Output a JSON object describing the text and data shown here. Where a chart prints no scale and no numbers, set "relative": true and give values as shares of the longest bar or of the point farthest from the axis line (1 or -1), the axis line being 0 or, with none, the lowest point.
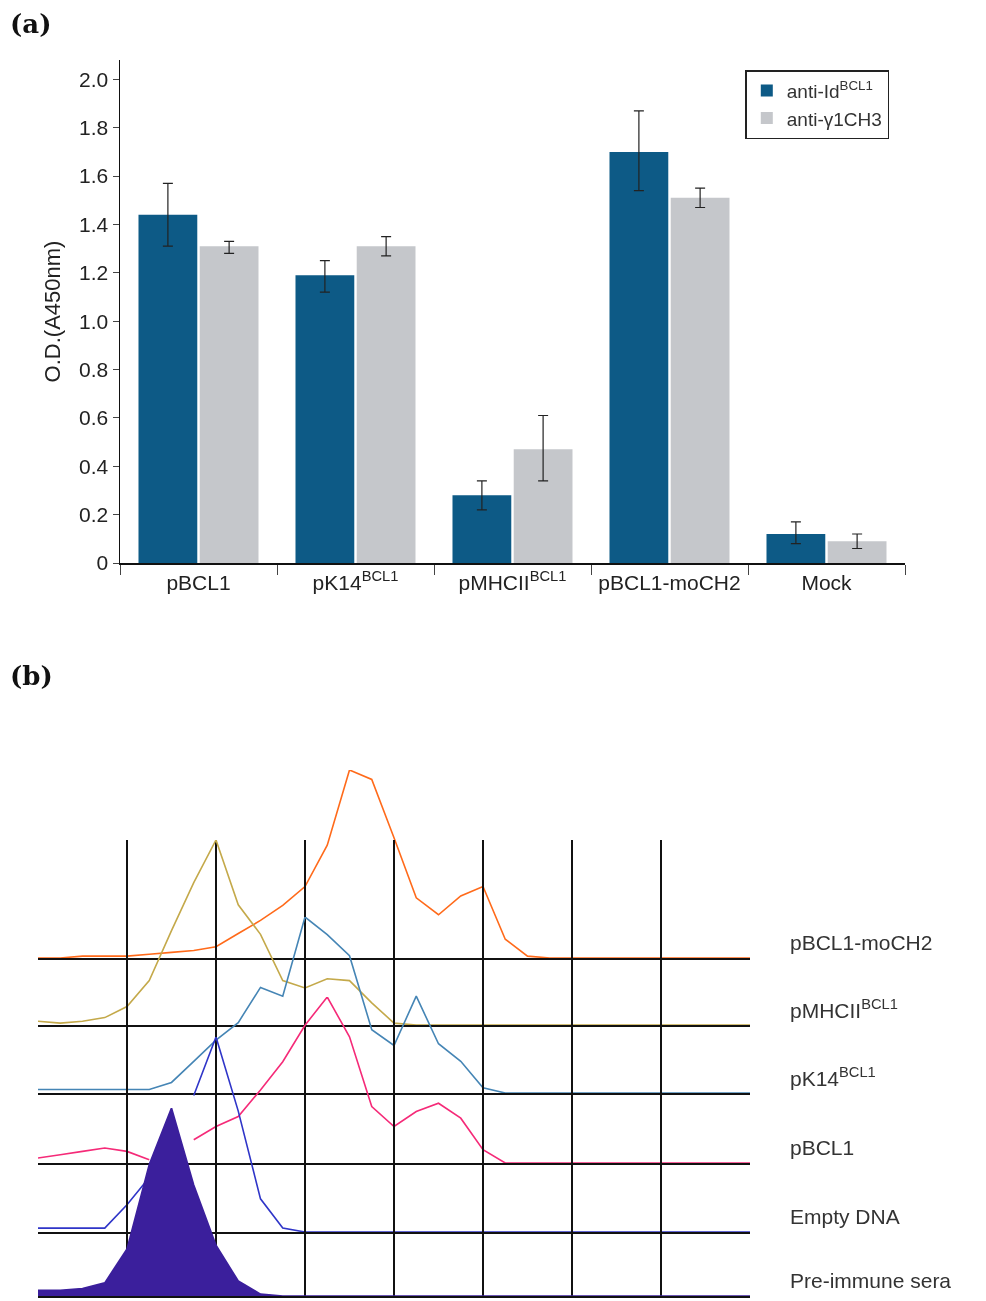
{
  "chart_data": [
    {
      "type": "bar",
      "title": "(a)",
      "ylabel": "O.D.(A450nm)",
      "categories": [
        "pBCL1",
        "pK14$^{BCL1}$",
        "pMHCII$^{BCL1}$",
        "pBCL1-moCH2",
        "Mock"
      ],
      "ylim": [
        0,
        2.08
      ],
      "yticks": [
        0,
        0.2,
        0.4,
        0.6,
        0.8,
        {
          "value": 1,
          "label": "1.0"
        },
        1.2,
        1.4,
        1.6,
        1.8,
        {
          "value": 2,
          "label": "2.0"
        }
      ],
      "legend": "top right",
      "series": [
        {
          "name": "anti-Id$^{BCL1}$",
          "color": "#0d5a86",
          "values": [
            1.44,
            1.19,
            0.28,
            1.7,
            0.12
          ],
          "errors": [
            [
              1.31,
              1.57
            ],
            [
              1.12,
              1.25
            ],
            [
              0.22,
              0.34
            ],
            [
              1.54,
              1.87
            ],
            [
              0.08,
              0.17
            ]
          ]
        },
        {
          "name": "anti-γ1CH3",
          "color": "#c5c7cb",
          "values": [
            1.31,
            1.31,
            0.47,
            1.51,
            0.09
          ],
          "errors": [
            [
              1.28,
              1.33
            ],
            [
              1.27,
              1.35
            ],
            [
              0.34,
              0.61
            ],
            [
              1.47,
              1.55
            ],
            [
              0.06,
              0.12
            ]
          ]
        }
      ]
    },
    {
      "type": "line",
      "title": "(b)",
      "relative": true,
      "categories": [
        null,
        null,
        null,
        null,
        null,
        null,
        null,
        null,
        null,
        null,
        null,
        null,
        null,
        null,
        null,
        null,
        null,
        null,
        null,
        null,
        null,
        null,
        null,
        null,
        null,
        null,
        null,
        null,
        null,
        null,
        null,
        null,
        null
      ],
      "series": [
        {
          "name": "pBCL1-moCH2",
          "color": "#ff6a1a",
          "values": [
            0,
            0,
            0.01,
            0.01,
            0.01,
            0.02,
            0.03,
            0.04,
            0.06,
            0.13,
            0.2,
            0.28,
            0.38,
            0.6,
            1,
            0.95,
            0.64,
            0.32,
            0.23,
            0.33,
            0.38,
            0.1,
            0.01,
            0,
            0,
            0,
            0,
            0,
            0,
            0,
            0,
            0,
            0
          ]
        }
      ]
    },
    {
      "type": "line",
      "relative": true,
      "grid": "x",
      "categories": [
        null,
        null,
        null,
        null,
        null,
        null,
        null,
        null,
        null,
        null,
        null,
        null,
        null,
        null,
        null,
        null,
        null,
        null,
        null,
        null,
        null,
        null,
        null,
        null,
        null,
        null,
        null,
        null,
        null,
        null,
        null,
        null,
        null
      ],
      "series": [
        {
          "name": "pMHCII$^{BCL1}$",
          "color": "#c4a94a",
          "values": [
            0.02,
            0.01,
            0.02,
            0.04,
            0.1,
            0.24,
            0.51,
            0.77,
            1,
            0.65,
            0.49,
            0.24,
            0.2,
            0.25,
            0.24,
            0.12,
            0.01,
            0,
            0,
            0,
            0,
            0,
            0,
            0,
            0,
            0,
            0,
            0,
            0,
            0,
            0,
            0,
            0
          ]
        }
      ]
    },
    {
      "type": "line",
      "relative": true,
      "grid": "x",
      "categories": [
        null,
        null,
        null,
        null,
        null,
        null,
        null,
        null,
        null,
        null,
        null,
        null,
        null,
        null,
        null,
        null,
        null,
        null,
        null,
        null,
        null,
        null,
        null,
        null,
        null,
        null,
        null,
        null,
        null,
        null,
        null,
        null,
        null
      ],
      "series": [
        {
          "name": "pK14$^{BCL1}$",
          "color": "#4585b5",
          "values": [
            0.02,
            0.02,
            0.02,
            0.02,
            0.02,
            0.02,
            0.06,
            0.18,
            0.3,
            0.4,
            0.6,
            0.55,
            1,
            0.9,
            0.78,
            0.36,
            0.27,
            0.55,
            0.28,
            0.18,
            0.03,
            0,
            0,
            0,
            0,
            0,
            0,
            0,
            0,
            0,
            0,
            0,
            0
          ]
        }
      ]
    },
    {
      "type": "line",
      "relative": true,
      "grid": "x",
      "categories": [
        null,
        null,
        null,
        null,
        null,
        null,
        null,
        null,
        null,
        null,
        null,
        null,
        null,
        null,
        null,
        null,
        null,
        null,
        null,
        null,
        null,
        null,
        null,
        null,
        null,
        null,
        null,
        null,
        null,
        null,
        null,
        null,
        null
      ],
      "series": [
        {
          "name": "pBCL1",
          "color": "#f52a78",
          "values": [
            0.03,
            0.05,
            0.07,
            0.09,
            0.07,
            0.02,
            null,
            0.14,
            0.22,
            0.28,
            0.44,
            0.61,
            0.83,
            1,
            0.76,
            0.34,
            0.22,
            0.31,
            0.36,
            0.27,
            0.08,
            0,
            0,
            0,
            0,
            0,
            0,
            0,
            0,
            0,
            0,
            0,
            0
          ]
        }
      ]
    },
    {
      "type": "line",
      "relative": true,
      "grid": "x",
      "categories": [
        null,
        null,
        null,
        null,
        null,
        null,
        null,
        null,
        null,
        null,
        null,
        null,
        null,
        null,
        null,
        null,
        null,
        null,
        null,
        null,
        null,
        null,
        null,
        null,
        null,
        null,
        null,
        null,
        null,
        null,
        null,
        null,
        null
      ],
      "series": [
        {
          "name": "Empty DNA",
          "color": "#2f35c8",
          "values": [
            0.02,
            0.02,
            0.02,
            0.02,
            0.14,
            0.28,
            null,
            0.7,
            1,
            0.62,
            0.17,
            0.02,
            0,
            0,
            0,
            0,
            0,
            0,
            0,
            0,
            0,
            0,
            0,
            0,
            0,
            0,
            0,
            0,
            0,
            0,
            0,
            0,
            0
          ]
        }
      ]
    },
    {
      "type": "area",
      "relative": true,
      "grid": "x",
      "categories": [
        null,
        null,
        null,
        null,
        null,
        null,
        null,
        null,
        null,
        null,
        null,
        null,
        null,
        null,
        null,
        null,
        null,
        null,
        null,
        null,
        null,
        null,
        null,
        null,
        null,
        null,
        null,
        null,
        null,
        null,
        null,
        null,
        null
      ],
      "series": [
        {
          "name": "Pre-immune sera",
          "color": "#3b1f9c",
          "values": [
            0.03,
            0.03,
            0.04,
            0.07,
            0.25,
            0.7,
            1,
            0.59,
            0.27,
            0.08,
            0.01,
            0,
            0,
            0,
            0,
            0,
            0,
            0,
            0,
            0,
            0,
            0,
            0,
            0,
            0,
            0,
            0,
            0,
            0,
            0,
            0,
            0,
            0
          ]
        }
      ]
    }
  ]
}
